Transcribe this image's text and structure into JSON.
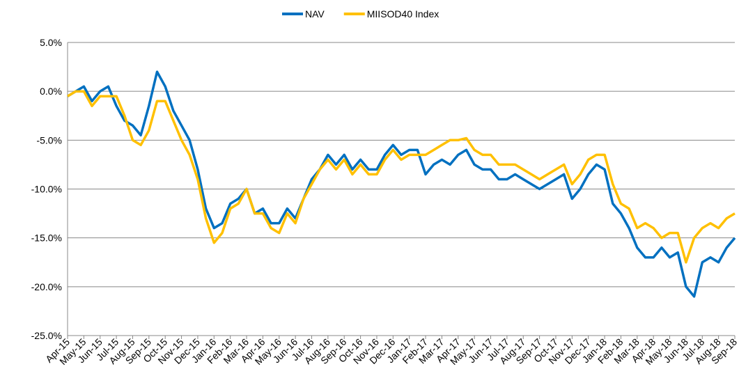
{
  "chart_data": {
    "type": "line",
    "categories": [
      "Apr-15",
      null,
      "May-15",
      null,
      "Jun-15",
      null,
      "Jul-15",
      null,
      "Aug-15",
      null,
      "Sep-15",
      null,
      "Oct-15",
      null,
      "Nov-15",
      null,
      "Dec-15",
      null,
      "Jan-16",
      null,
      "Feb-16",
      null,
      "Mar-16",
      null,
      "Apr-16",
      null,
      "May-16",
      null,
      "Jun-16",
      null,
      "Jul-16",
      null,
      "Aug-16",
      null,
      "Sep-16",
      null,
      "Oct-16",
      null,
      "Nov-16",
      null,
      "Dec-16",
      null,
      "Jan-17",
      null,
      "Feb-17",
      null,
      "Mar-17",
      null,
      "Apr-17",
      null,
      "May-17",
      null,
      "Jun-17",
      null,
      "Jul-17",
      null,
      "Aug-17",
      null,
      "Sep-17",
      null,
      "Oct-17",
      null,
      "Nov-17",
      null,
      "Dec-17",
      null,
      "Jan-18",
      null,
      "Feb-18",
      null,
      "Mar-18",
      null,
      "Apr-18",
      null,
      "May-18",
      null,
      "Jun-18",
      null,
      "Jul-18",
      null,
      "Aug-18",
      null,
      "Sep-18"
    ],
    "series": [
      {
        "name": "NAV",
        "color": "#0070C0",
        "values": [
          -0.5,
          0,
          0.5,
          -1,
          0,
          0.5,
          -1.5,
          -3,
          -3.5,
          -4.5,
          -1.5,
          2,
          0.5,
          -2,
          -3.5,
          -5,
          -8,
          -12,
          -14,
          -13.5,
          -11.5,
          -11,
          -10,
          -12.5,
          -12,
          -13.5,
          -13.5,
          -12,
          -13,
          -11,
          -9,
          -8,
          -6.5,
          -7.5,
          -6.5,
          -8,
          -7,
          -8,
          -8,
          -6.5,
          -5.5,
          -6.5,
          -6,
          -6,
          -8.5,
          -7.5,
          -7,
          -7.5,
          -6.5,
          -6,
          -7.5,
          -8,
          -8,
          -9,
          -9,
          -8.5,
          -9,
          -9.5,
          -10,
          -9.5,
          -9,
          -8.5,
          -11,
          -10,
          -8.5,
          -7.5,
          -8,
          -11.5,
          -12.5,
          -14,
          -16,
          -17,
          -17,
          -16,
          -17,
          -16.5,
          -20,
          -21,
          -17.5,
          -17,
          -17.5,
          -16,
          -15
        ]
      },
      {
        "name": "MIISOD40 Index",
        "color": "#FFC000",
        "values": [
          -0.5,
          0,
          0,
          -1.5,
          -0.5,
          -0.5,
          -0.5,
          -2.5,
          -5,
          -5.5,
          -4,
          -1,
          -1,
          -3,
          -5,
          -6.5,
          -9,
          -13,
          -15.5,
          -14.5,
          -12,
          -11.5,
          -10,
          -12.5,
          -12.5,
          -14,
          -14.5,
          -12.5,
          -13.5,
          -11,
          -9.5,
          -8,
          -7,
          -8,
          -7,
          -8.5,
          -7.5,
          -8.5,
          -8.5,
          -7,
          -6,
          -7,
          -6.5,
          -6.5,
          -6.5,
          -6,
          -5.5,
          -5,
          -5,
          -4.8,
          -6,
          -6.5,
          -6.5,
          -7.5,
          -7.5,
          -7.5,
          -8,
          -8.5,
          -9,
          -8.5,
          -8,
          -7.5,
          -9.5,
          -8.5,
          -7,
          -6.5,
          -6.5,
          -9.5,
          -11.5,
          -12,
          -14,
          -13.5,
          -14,
          -15,
          -14.5,
          -14.5,
          -17.5,
          -15,
          -14,
          -13.5,
          -14,
          -13,
          -12.5
        ]
      }
    ],
    "ylim": [
      -25,
      5
    ],
    "yticks": [
      {
        "value": -25,
        "label": "-25.0%"
      },
      {
        "value": -20,
        "label": "-20.0%"
      },
      {
        "value": -15,
        "label": "-15.0%"
      },
      {
        "value": -10,
        "label": "-10.0%"
      },
      {
        "value": -5,
        "label": "-5.0%"
      },
      {
        "value": 0,
        "label": "0.0%"
      },
      {
        "value": 5,
        "label": "5.0%"
      }
    ],
    "grid": true,
    "legend": "top"
  }
}
